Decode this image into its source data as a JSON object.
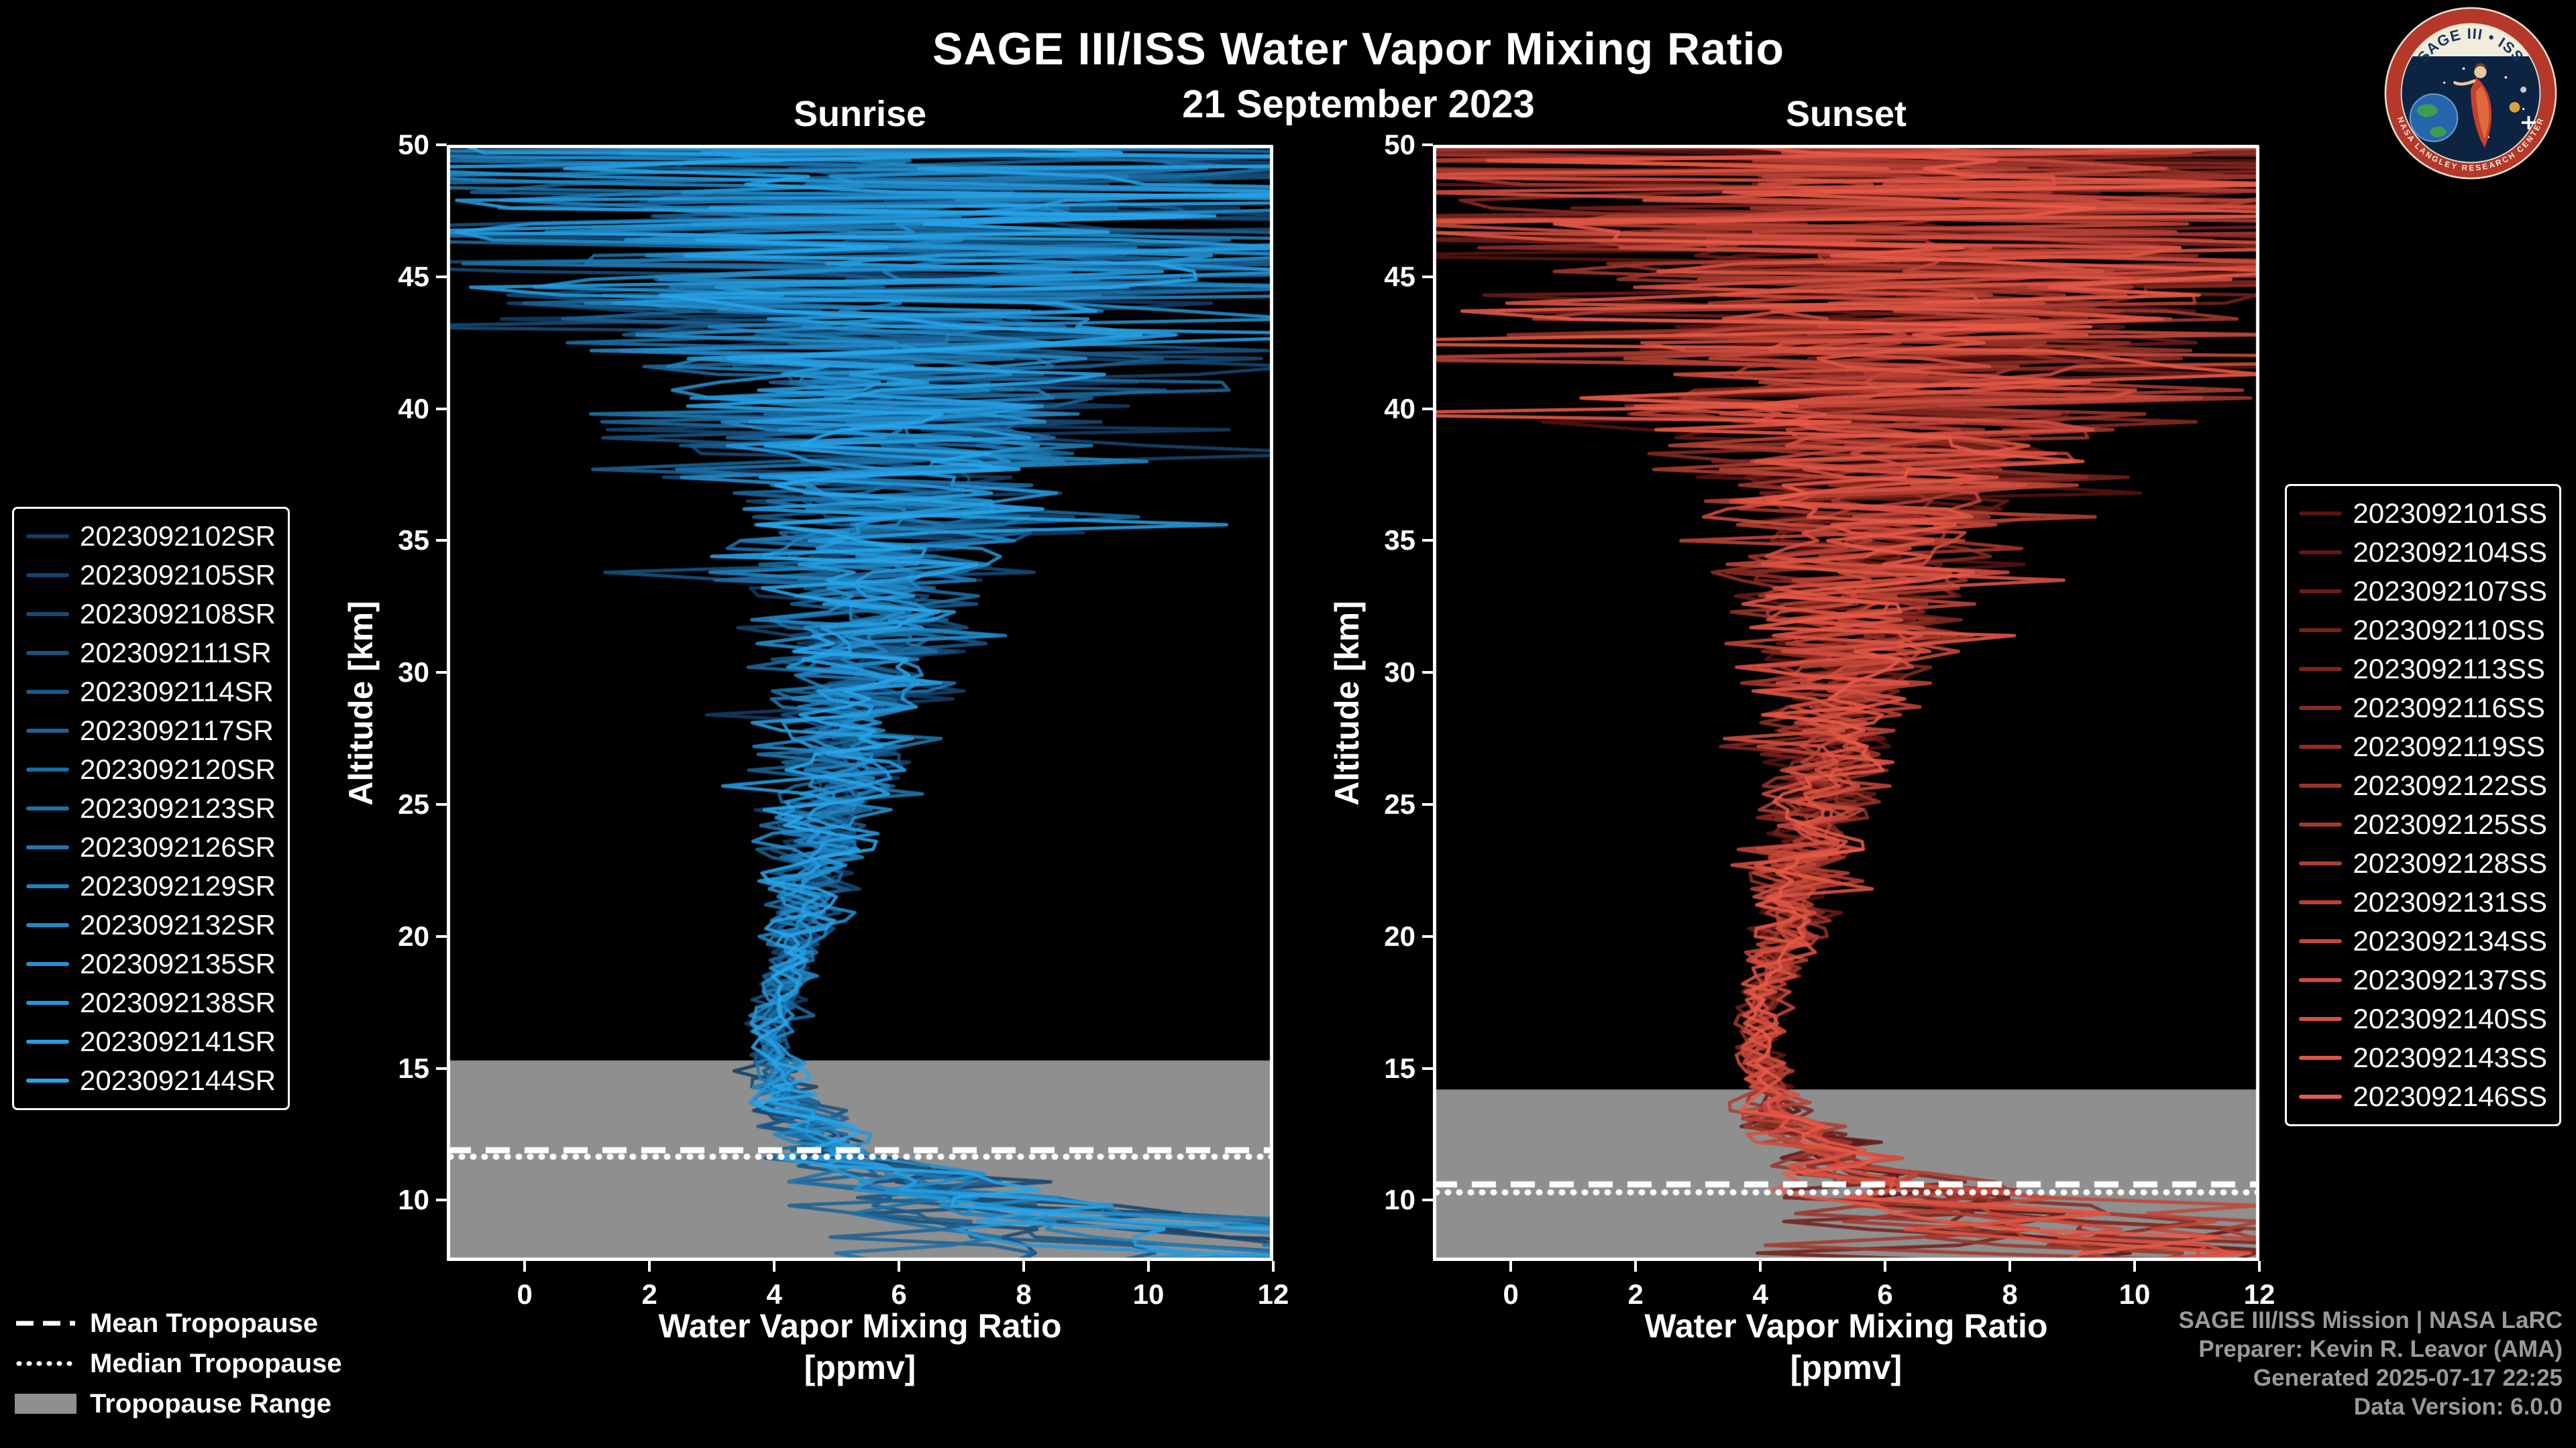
{
  "figure": {
    "title": "SAGE III/ISS Water Vapor Mixing Ratio",
    "date": "21 September 2023"
  },
  "logo": {
    "arc_text": "SAGE III • ISS",
    "ring_text": "NASA LANGLEY RESEARCH CENTER"
  },
  "tropopause_legend": {
    "mean": "Mean Tropopause",
    "median": "Median Tropopause",
    "range": "Tropopause Range"
  },
  "credits": {
    "line1": "SAGE III/ISS Mission | NASA LaRC",
    "line2": "Preparer: Kevin R. Leavor (AMA)",
    "line3": "Generated 2025-07-17 22:25",
    "line4": "Data Version: 6.0.0"
  },
  "style": {
    "background": "#000000",
    "axis_color": "#ffffff",
    "band_color": "#8f8f8f",
    "tropopause_line_color": "#ffffff"
  },
  "chart_data": [
    {
      "type": "line",
      "title": "Sunrise",
      "xlabel": "Water Vapor Mixing Ratio",
      "xunits": "[ppmv]",
      "ylabel": "Altitude [km]",
      "xlim": [
        -1.25,
        12.0
      ],
      "ylim": [
        7.7,
        50.0
      ],
      "xticks": [
        0,
        2,
        4,
        6,
        8,
        10,
        12
      ],
      "yticks": [
        10,
        15,
        20,
        25,
        30,
        35,
        40,
        45,
        50
      ],
      "grid": false,
      "legend_position": "outside-left",
      "color_start": "#123c64",
      "color_end": "#28a5eb",
      "series": [
        "2023092102SR",
        "2023092105SR",
        "2023092108SR",
        "2023092111SR",
        "2023092114SR",
        "2023092117SR",
        "2023092120SR",
        "2023092123SR",
        "2023092126SR",
        "2023092129SR",
        "2023092132SR",
        "2023092135SR",
        "2023092138SR",
        "2023092141SR",
        "2023092144SR"
      ],
      "tropopause": {
        "mean_km": 11.9,
        "median_km": 11.65,
        "range_top_km": 15.3,
        "range_bottom_km": 7.7
      },
      "mean_profile_ppmv": [
        [
          7.7,
          7.5
        ],
        [
          9,
          6.5
        ],
        [
          10,
          5.8
        ],
        [
          11,
          5.2
        ],
        [
          12,
          4.8
        ],
        [
          13,
          4.4
        ],
        [
          14,
          4.15
        ],
        [
          15,
          4.0
        ],
        [
          16,
          3.95
        ],
        [
          17,
          4.0
        ],
        [
          18,
          4.1
        ],
        [
          20,
          4.4
        ],
        [
          22,
          4.6
        ],
        [
          25,
          4.9
        ],
        [
          28,
          5.2
        ],
        [
          30,
          5.4
        ],
        [
          33,
          5.6
        ],
        [
          35,
          5.8
        ],
        [
          40,
          6.1
        ],
        [
          45,
          6.3
        ],
        [
          50,
          6.4
        ]
      ],
      "spread_ppmv": [
        [
          7.7,
          2.5
        ],
        [
          9,
          2.0
        ],
        [
          10,
          1.5
        ],
        [
          12,
          0.8
        ],
        [
          14,
          0.45
        ],
        [
          16,
          0.3
        ],
        [
          18,
          0.35
        ],
        [
          20,
          0.5
        ],
        [
          22,
          0.6
        ],
        [
          25,
          0.8
        ],
        [
          28,
          1.0
        ],
        [
          30,
          1.3
        ],
        [
          32,
          1.6
        ],
        [
          35,
          2.2
        ],
        [
          38,
          3.0
        ],
        [
          40,
          3.8
        ],
        [
          42,
          4.5
        ],
        [
          45,
          6.5
        ],
        [
          48,
          7.5
        ],
        [
          50,
          8.5
        ]
      ]
    },
    {
      "type": "line",
      "title": "Sunset",
      "xlabel": "Water Vapor Mixing Ratio",
      "xunits": "[ppmv]",
      "ylabel": "Altitude [km]",
      "xlim": [
        -1.25,
        12.0
      ],
      "ylim": [
        7.7,
        50.0
      ],
      "xticks": [
        0,
        2,
        4,
        6,
        8,
        10,
        12
      ],
      "yticks": [
        10,
        15,
        20,
        25,
        30,
        35,
        40,
        45,
        50
      ],
      "grid": false,
      "legend_position": "outside-right",
      "color_start": "#571210",
      "color_end": "#e85a48",
      "series": [
        "2023092101SS",
        "2023092104SS",
        "2023092107SS",
        "2023092110SS",
        "2023092113SS",
        "2023092116SS",
        "2023092119SS",
        "2023092122SS",
        "2023092125SS",
        "2023092128SS",
        "2023092131SS",
        "2023092134SS",
        "2023092137SS",
        "2023092140SS",
        "2023092143SS",
        "2023092146SS"
      ],
      "tropopause": {
        "mean_km": 10.6,
        "median_km": 10.3,
        "range_top_km": 14.2,
        "range_bottom_km": 7.7
      },
      "mean_profile_ppmv": [
        [
          7.7,
          7.5
        ],
        [
          9,
          6.5
        ],
        [
          10,
          5.8
        ],
        [
          11,
          5.2
        ],
        [
          12,
          4.8
        ],
        [
          13,
          4.4
        ],
        [
          14,
          4.15
        ],
        [
          15,
          4.0
        ],
        [
          16,
          3.95
        ],
        [
          17,
          4.0
        ],
        [
          18,
          4.1
        ],
        [
          20,
          4.4
        ],
        [
          22,
          4.6
        ],
        [
          25,
          4.9
        ],
        [
          28,
          5.2
        ],
        [
          30,
          5.4
        ],
        [
          33,
          5.6
        ],
        [
          35,
          5.8
        ],
        [
          40,
          6.1
        ],
        [
          45,
          6.3
        ],
        [
          50,
          6.4
        ]
      ],
      "spread_ppmv": [
        [
          7.7,
          2.5
        ],
        [
          9,
          2.0
        ],
        [
          10,
          1.5
        ],
        [
          12,
          0.8
        ],
        [
          14,
          0.45
        ],
        [
          16,
          0.3
        ],
        [
          18,
          0.35
        ],
        [
          20,
          0.5
        ],
        [
          22,
          0.6
        ],
        [
          25,
          0.8
        ],
        [
          28,
          1.0
        ],
        [
          30,
          1.3
        ],
        [
          32,
          1.6
        ],
        [
          35,
          2.2
        ],
        [
          38,
          3.0
        ],
        [
          40,
          3.8
        ],
        [
          42,
          4.5
        ],
        [
          45,
          6.5
        ],
        [
          48,
          7.5
        ],
        [
          50,
          8.5
        ]
      ]
    }
  ]
}
